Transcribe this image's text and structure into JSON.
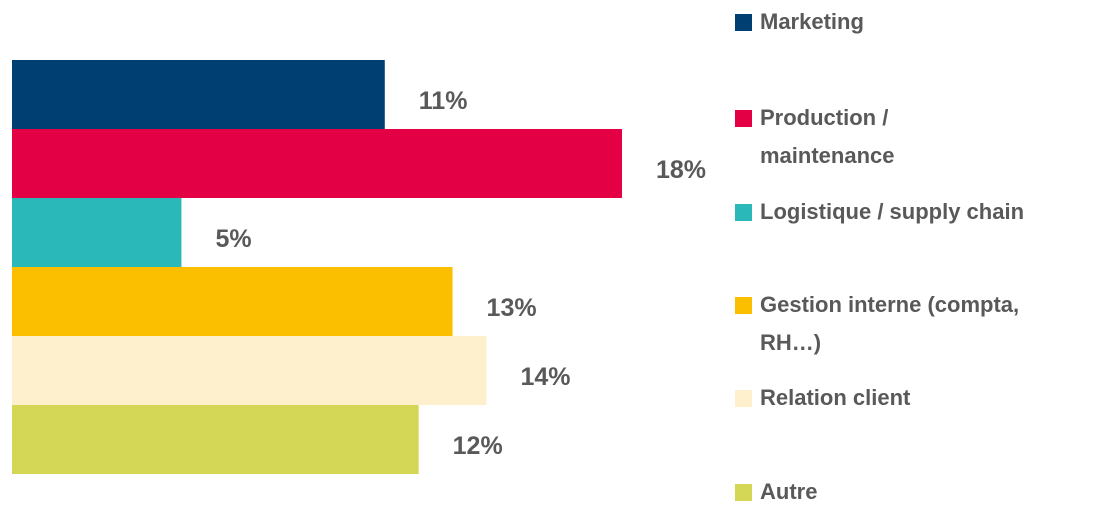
{
  "chart_data": {
    "type": "bar",
    "orientation": "horizontal",
    "categories": [
      "Marketing",
      "Production / maintenance",
      "Logistique / supply chain",
      "Gestion interne (compta, RH…)",
      "Relation client",
      "Autre"
    ],
    "values": [
      11,
      18,
      5,
      13,
      14,
      12
    ],
    "value_labels": [
      "11%",
      "18%",
      "5%",
      "13%",
      "14%",
      "12%"
    ],
    "colors": [
      "#003f72",
      "#e30045",
      "#2bb8b8",
      "#fcbf00",
      "#fef0cc",
      "#d4d655"
    ],
    "legend": "right"
  }
}
